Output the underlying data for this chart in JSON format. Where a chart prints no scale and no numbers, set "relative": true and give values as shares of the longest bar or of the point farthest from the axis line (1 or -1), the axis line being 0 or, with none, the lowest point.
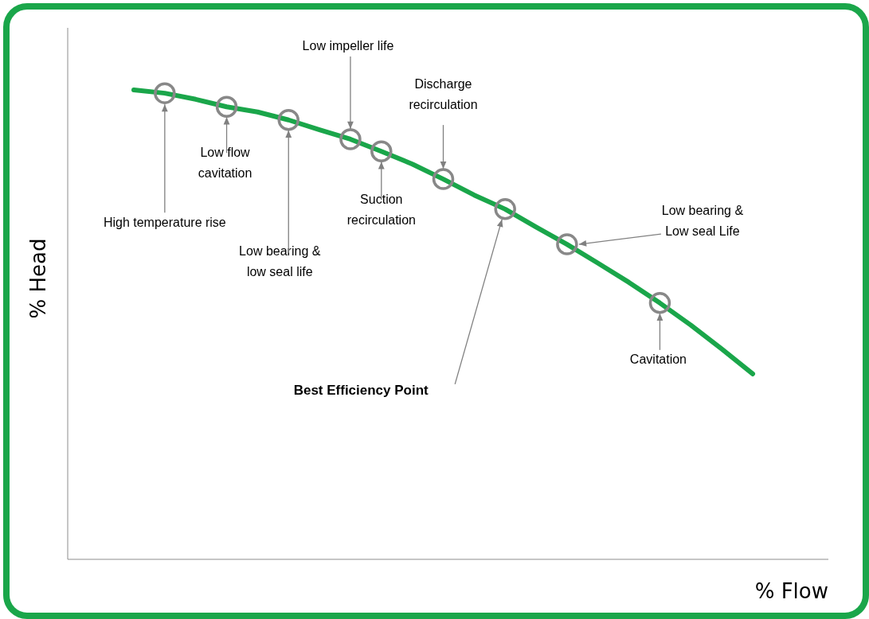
{
  "chart_data": {
    "type": "line",
    "relative": true,
    "xlabel": "% Flow",
    "ylabel": "% Head",
    "categories": [
      null,
      null,
      null,
      null,
      null,
      null,
      null,
      null,
      null,
      null,
      null,
      null,
      null,
      null,
      null,
      null,
      null,
      null,
      null,
      null,
      null
    ],
    "series": [
      {
        "color": "#1aa64a",
        "values": [
          1,
          0.993,
          0.98,
          0.964,
          0.953,
          0.936,
          0.915,
          0.895,
          0.869,
          0.842,
          0.81,
          0.776,
          0.746,
          0.708,
          0.671,
          0.631,
          0.59,
          0.546,
          0.499,
          0.448,
          0.395
        ]
      }
    ],
    "annotations": [
      "High temperature rise",
      "Low flow\ncavitation",
      "Low bearing &\nlow seal life",
      "Low impeller life",
      "Suction\nrecirculation",
      "Discharge\nrecirculation",
      "Best Efficiency Point",
      "Low bearing &\nLow seal Life",
      "Cavitation"
    ],
    "legend": false
  }
}
